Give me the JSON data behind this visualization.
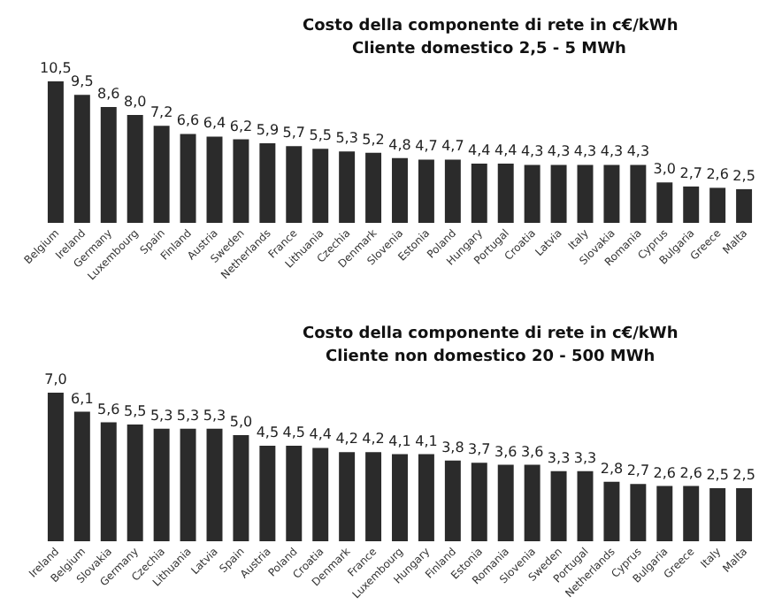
{
  "chart_data": [
    {
      "type": "bar",
      "title": "Costo della componente di rete in c€/kWh",
      "subtitle": "Cliente domestico 2,5 - 5 MWh",
      "categories": [
        "Belgium",
        "Ireland",
        "Germany",
        "Luxembourg",
        "Spain",
        "Finland",
        "Austria",
        "Sweden",
        "Netherlands",
        "France",
        "Lithuania",
        "Czechia",
        "Denmark",
        "Slovenia",
        "Estonia",
        "Poland",
        "Hungary",
        "Portugal",
        "Croatia",
        "Latvia",
        "Italy",
        "Slovakia",
        "Romania",
        "Cyprus",
        "Bulgaria",
        "Greece",
        "Malta"
      ],
      "values": [
        10.5,
        9.5,
        8.6,
        8.0,
        7.2,
        6.6,
        6.4,
        6.2,
        5.9,
        5.7,
        5.5,
        5.3,
        5.2,
        4.8,
        4.7,
        4.7,
        4.4,
        4.4,
        4.3,
        4.3,
        4.3,
        4.3,
        4.3,
        3.0,
        2.7,
        2.6,
        2.5
      ],
      "value_labels": [
        "10,5",
        "9,5",
        "8,6",
        "8,0",
        "7,2",
        "6,6",
        "6,4",
        "6,2",
        "5,9",
        "5,7",
        "5,5",
        "5,3",
        "5,2",
        "4,8",
        "4,7",
        "4,7",
        "4,4",
        "4,4",
        "4,3",
        "4,3",
        "4,3",
        "4,3",
        "4,3",
        "3,0",
        "2,7",
        "2,6",
        "2,5"
      ],
      "color": "#2b2b2b",
      "tick_labels": "x"
    },
    {
      "type": "bar",
      "title": "Costo della componente di rete in c€/kWh",
      "subtitle": "Cliente non domestico 20 - 500 MWh",
      "categories": [
        "Ireland",
        "Belgium",
        "Slovakia",
        "Germany",
        "Czechia",
        "Lithuania",
        "Latvia",
        "Spain",
        "Austria",
        "Poland",
        "Croatia",
        "Denmark",
        "France",
        "Luxembourg",
        "Hungary",
        "Finland",
        "Estonia",
        "Romania",
        "Slovenia",
        "Sweden",
        "Portugal",
        "Netherlands",
        "Cyprus",
        "Bulgaria",
        "Greece",
        "Italy",
        "Malta"
      ],
      "values": [
        7.0,
        6.1,
        5.6,
        5.5,
        5.3,
        5.3,
        5.3,
        5.0,
        4.5,
        4.5,
        4.4,
        4.2,
        4.2,
        4.1,
        4.1,
        3.8,
        3.7,
        3.6,
        3.6,
        3.3,
        3.3,
        2.8,
        2.7,
        2.6,
        2.6,
        2.5,
        2.5
      ],
      "value_labels": [
        "7,0",
        "6,1",
        "5,6",
        "5,5",
        "5,3",
        "5,3",
        "5,3",
        "5,0",
        "4,5",
        "4,5",
        "4,4",
        "4,2",
        "4,2",
        "4,1",
        "4,1",
        "3,8",
        "3,7",
        "3,6",
        "3,6",
        "3,3",
        "3,3",
        "2,8",
        "2,7",
        "2,6",
        "2,6",
        "2,5",
        "2,5"
      ],
      "color": "#2b2b2b",
      "tick_labels": "x"
    }
  ]
}
